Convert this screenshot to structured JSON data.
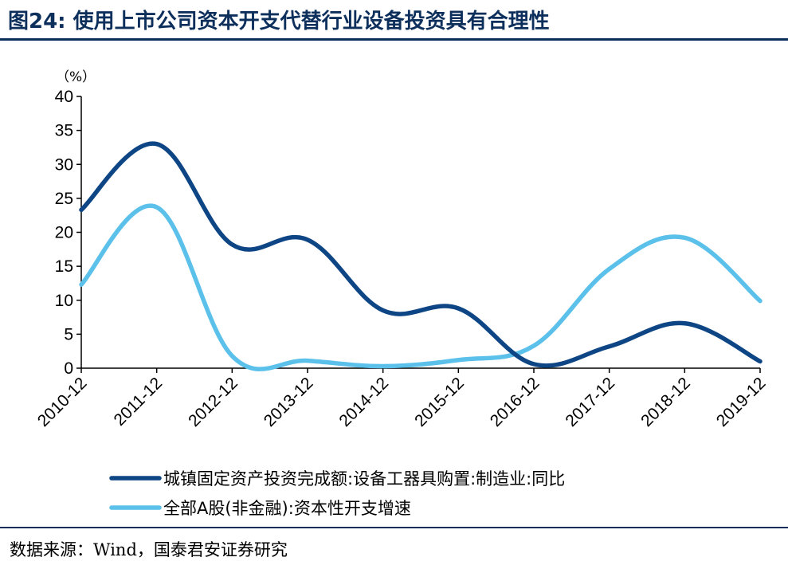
{
  "title": "图24: 使用上市公司资本开支代替行业设备投资具有合理性",
  "source": "数据来源：Wind，国泰君安证券研究",
  "chart_data": {
    "type": "line",
    "ylabel": "（%）",
    "ylim": [
      0,
      40
    ],
    "yticks": [
      0,
      5,
      10,
      15,
      20,
      25,
      30,
      35,
      40
    ],
    "categories": [
      "2010-12",
      "2011-12",
      "2012-12",
      "2013-12",
      "2014-12",
      "2015-12",
      "2016-12",
      "2017-12",
      "2018-12",
      "2019-12"
    ],
    "series": [
      {
        "name": "城镇固定资产投资完成额:设备工器具购置:制造业:同比",
        "color": "#0d4585",
        "values": [
          23.3,
          33.0,
          18.2,
          18.9,
          8.5,
          8.8,
          0.6,
          3.2,
          6.6,
          1.0
        ]
      },
      {
        "name": "全部A股(非金融):资本性开支增速",
        "color": "#5bc0ea",
        "values": [
          12.3,
          23.7,
          1.8,
          1.1,
          0.3,
          1.2,
          3.3,
          14.6,
          19.2,
          9.9
        ]
      }
    ],
    "grid": false,
    "legend_position": "bottom"
  }
}
